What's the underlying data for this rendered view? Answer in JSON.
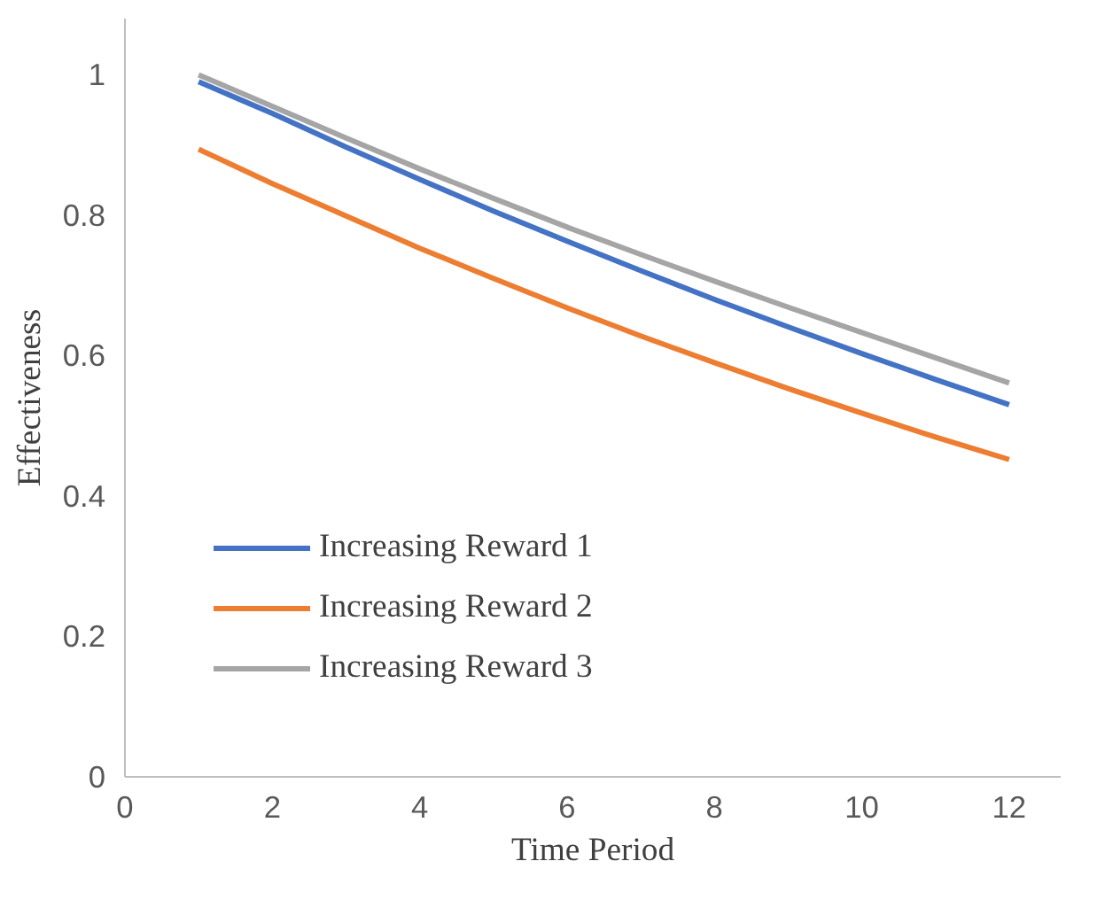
{
  "chart_data": {
    "type": "line",
    "xlabel": "Time Period",
    "ylabel": "Effectiveness",
    "x": [
      1,
      2,
      3,
      4,
      5,
      6,
      7,
      8,
      9,
      10,
      11,
      12
    ],
    "series": [
      {
        "name": "Increasing Reward 1",
        "color": "#4472c4",
        "values": [
          0.99,
          0.945,
          0.897,
          0.851,
          0.806,
          0.763,
          0.721,
          0.68,
          0.641,
          0.603,
          0.566,
          0.53
        ]
      },
      {
        "name": "Increasing Reward 2",
        "color": "#ed7d31",
        "values": [
          0.894,
          0.845,
          0.799,
          0.753,
          0.71,
          0.668,
          0.628,
          0.59,
          0.553,
          0.518,
          0.484,
          0.452
        ]
      },
      {
        "name": "Increasing Reward 3",
        "color": "#a5a5a5",
        "values": [
          1.0,
          0.955,
          0.91,
          0.866,
          0.824,
          0.783,
          0.744,
          0.706,
          0.669,
          0.633,
          0.597,
          0.561
        ]
      }
    ],
    "xlim": [
      0,
      12.7
    ],
    "ylim": [
      0,
      1.08
    ],
    "xticks": [
      0,
      2,
      4,
      6,
      8,
      10,
      12
    ],
    "yticks": [
      0,
      0.2,
      0.4,
      0.6,
      0.8,
      1
    ],
    "grid": false,
    "legend": "bottom left",
    "marker": "none",
    "line_style": "solid"
  }
}
